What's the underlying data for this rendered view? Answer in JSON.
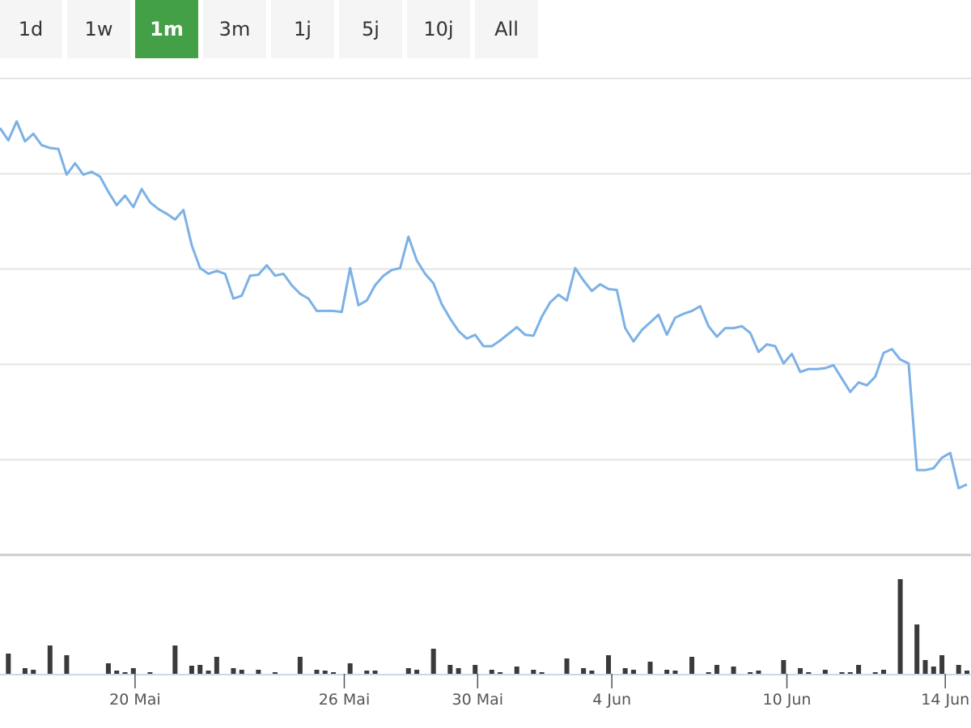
{
  "range_buttons": [
    {
      "label": "1d",
      "active": false
    },
    {
      "label": "1w",
      "active": false
    },
    {
      "label": "1m",
      "active": true
    },
    {
      "label": "3m",
      "active": false
    },
    {
      "label": "1j",
      "active": false
    },
    {
      "label": "5j",
      "active": false
    },
    {
      "label": "10j",
      "active": false
    },
    {
      "label": "All",
      "active": false
    }
  ],
  "chart_data": {
    "type": "line",
    "x": [
      0,
      1,
      2,
      3,
      4,
      5,
      6,
      7,
      8,
      9,
      10,
      11,
      12,
      13,
      14,
      15,
      16,
      17,
      18,
      19,
      20,
      21,
      22,
      23,
      24,
      25,
      26,
      27,
      28,
      29,
      30,
      31,
      32,
      33,
      34,
      35,
      36,
      37,
      38,
      39,
      40,
      41,
      42,
      43,
      44,
      45,
      46,
      47,
      48,
      49,
      50,
      51,
      52,
      53,
      54,
      55,
      56,
      57,
      58,
      59,
      60,
      61,
      62,
      63,
      64,
      65,
      66,
      67,
      68,
      69,
      70,
      71,
      72,
      73,
      74,
      75,
      76,
      77,
      78,
      79,
      80,
      81,
      82,
      83,
      84,
      85,
      86,
      87,
      88,
      89,
      90,
      91,
      92,
      93,
      94,
      95,
      96,
      97,
      98,
      99,
      100,
      101,
      102,
      103,
      104,
      105,
      106,
      107,
      108,
      109,
      110,
      111,
      112,
      113,
      114,
      115,
      116
    ],
    "series": [
      {
        "color": "#7cb1e6",
        "values": [
          4.48,
          4.35,
          4.55,
          4.34,
          4.42,
          4.3,
          4.27,
          4.26,
          3.99,
          4.11,
          3.99,
          4.02,
          3.97,
          3.81,
          3.67,
          3.77,
          3.65,
          3.84,
          3.7,
          3.63,
          3.58,
          3.52,
          3.62,
          3.25,
          3.01,
          2.95,
          2.98,
          2.95,
          2.69,
          2.72,
          2.93,
          2.94,
          3.04,
          2.93,
          2.95,
          2.83,
          2.74,
          2.69,
          2.56,
          2.56,
          2.56,
          2.55,
          3.01,
          2.62,
          2.67,
          2.83,
          2.93,
          2.99,
          3.01,
          3.34,
          3.09,
          2.95,
          2.85,
          2.63,
          2.48,
          2.35,
          2.27,
          2.31,
          2.19,
          2.19,
          2.25,
          2.32,
          2.39,
          2.31,
          2.3,
          2.5,
          2.65,
          2.73,
          2.67,
          3.01,
          2.88,
          2.77,
          2.84,
          2.79,
          2.78,
          2.38,
          2.24,
          2.36,
          2.44,
          2.52,
          2.31,
          2.49,
          2.53,
          2.56,
          2.61,
          2.4,
          2.29,
          2.38,
          2.38,
          2.4,
          2.33,
          2.13,
          2.21,
          2.19,
          2.01,
          2.11,
          1.92,
          1.95,
          1.95,
          1.96,
          1.99,
          1.85,
          1.71,
          1.81,
          1.78,
          1.87,
          2.12,
          2.16,
          2.05,
          2.01,
          0.89,
          0.89,
          0.91,
          1.02,
          1.07,
          0.7,
          0.74
        ]
      }
    ],
    "xlim": [
      0,
      116
    ],
    "xticks": [
      {
        "value": 16.2,
        "label": "20 Mai"
      },
      {
        "value": 41.3,
        "label": "26 Mai"
      },
      {
        "value": 57.3,
        "label": "30 Mai"
      },
      {
        "value": 73.4,
        "label": "4 Jun"
      },
      {
        "value": 94.4,
        "label": "10 Jun"
      },
      {
        "value": 113.4,
        "label": "14 Jun"
      }
    ],
    "ylim": [
      0,
      5
    ],
    "yticks": [
      0,
      1,
      2,
      3,
      4,
      5
    ],
    "grid": true,
    "volume": {
      "type": "bar",
      "color": "#3a3a3a",
      "ylim": [
        0,
        120
      ],
      "x": [
        1,
        3,
        4,
        6,
        8,
        13,
        14,
        15,
        16,
        18,
        21,
        23,
        24,
        25,
        26,
        28,
        29,
        31,
        33,
        36,
        38,
        39,
        40,
        42,
        44,
        45,
        49,
        50,
        52,
        54,
        55,
        57,
        59,
        60,
        62,
        64,
        65,
        68,
        70,
        71,
        73,
        75,
        76,
        78,
        80,
        81,
        83,
        85,
        86,
        88,
        90,
        91,
        94,
        96,
        97,
        99,
        101,
        102,
        103,
        105,
        106,
        108,
        110,
        111,
        112,
        113,
        115,
        116
      ],
      "values": [
        25,
        7,
        5,
        35,
        23,
        13,
        4,
        2,
        7,
        2,
        35,
        10,
        11,
        4,
        21,
        7,
        5,
        5,
        2,
        21,
        5,
        4,
        2,
        13,
        4,
        4,
        7,
        5,
        31,
        11,
        7,
        11,
        5,
        2,
        9,
        5,
        2,
        19,
        7,
        4,
        23,
        7,
        5,
        15,
        5,
        4,
        21,
        2,
        11,
        9,
        2,
        4,
        17,
        7,
        2,
        5,
        2,
        2,
        11,
        2,
        5,
        117,
        61,
        17,
        9,
        23,
        11,
        4
      ]
    }
  }
}
